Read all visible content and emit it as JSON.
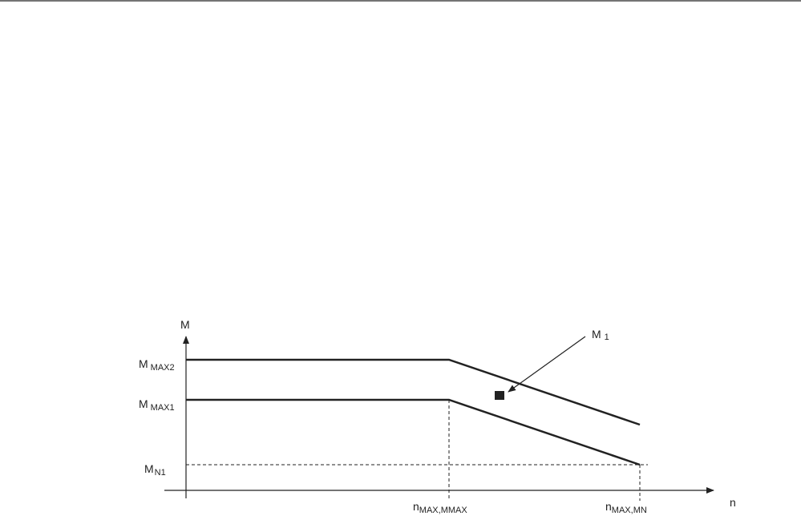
{
  "axes": {
    "y_label": "M",
    "x_label": "n"
  },
  "y_labels": [
    {
      "main": "M",
      "sub": "MAX2"
    },
    {
      "main": "M",
      "sub": "MAX1"
    },
    {
      "main": "M",
      "sub": "N1"
    }
  ],
  "x_labels": [
    {
      "main": "n",
      "sub": "MAX,MMAX"
    },
    {
      "main": "n",
      "sub": "MAX,MN"
    }
  ],
  "point_label": {
    "main": "M",
    "sub": "1"
  }
}
